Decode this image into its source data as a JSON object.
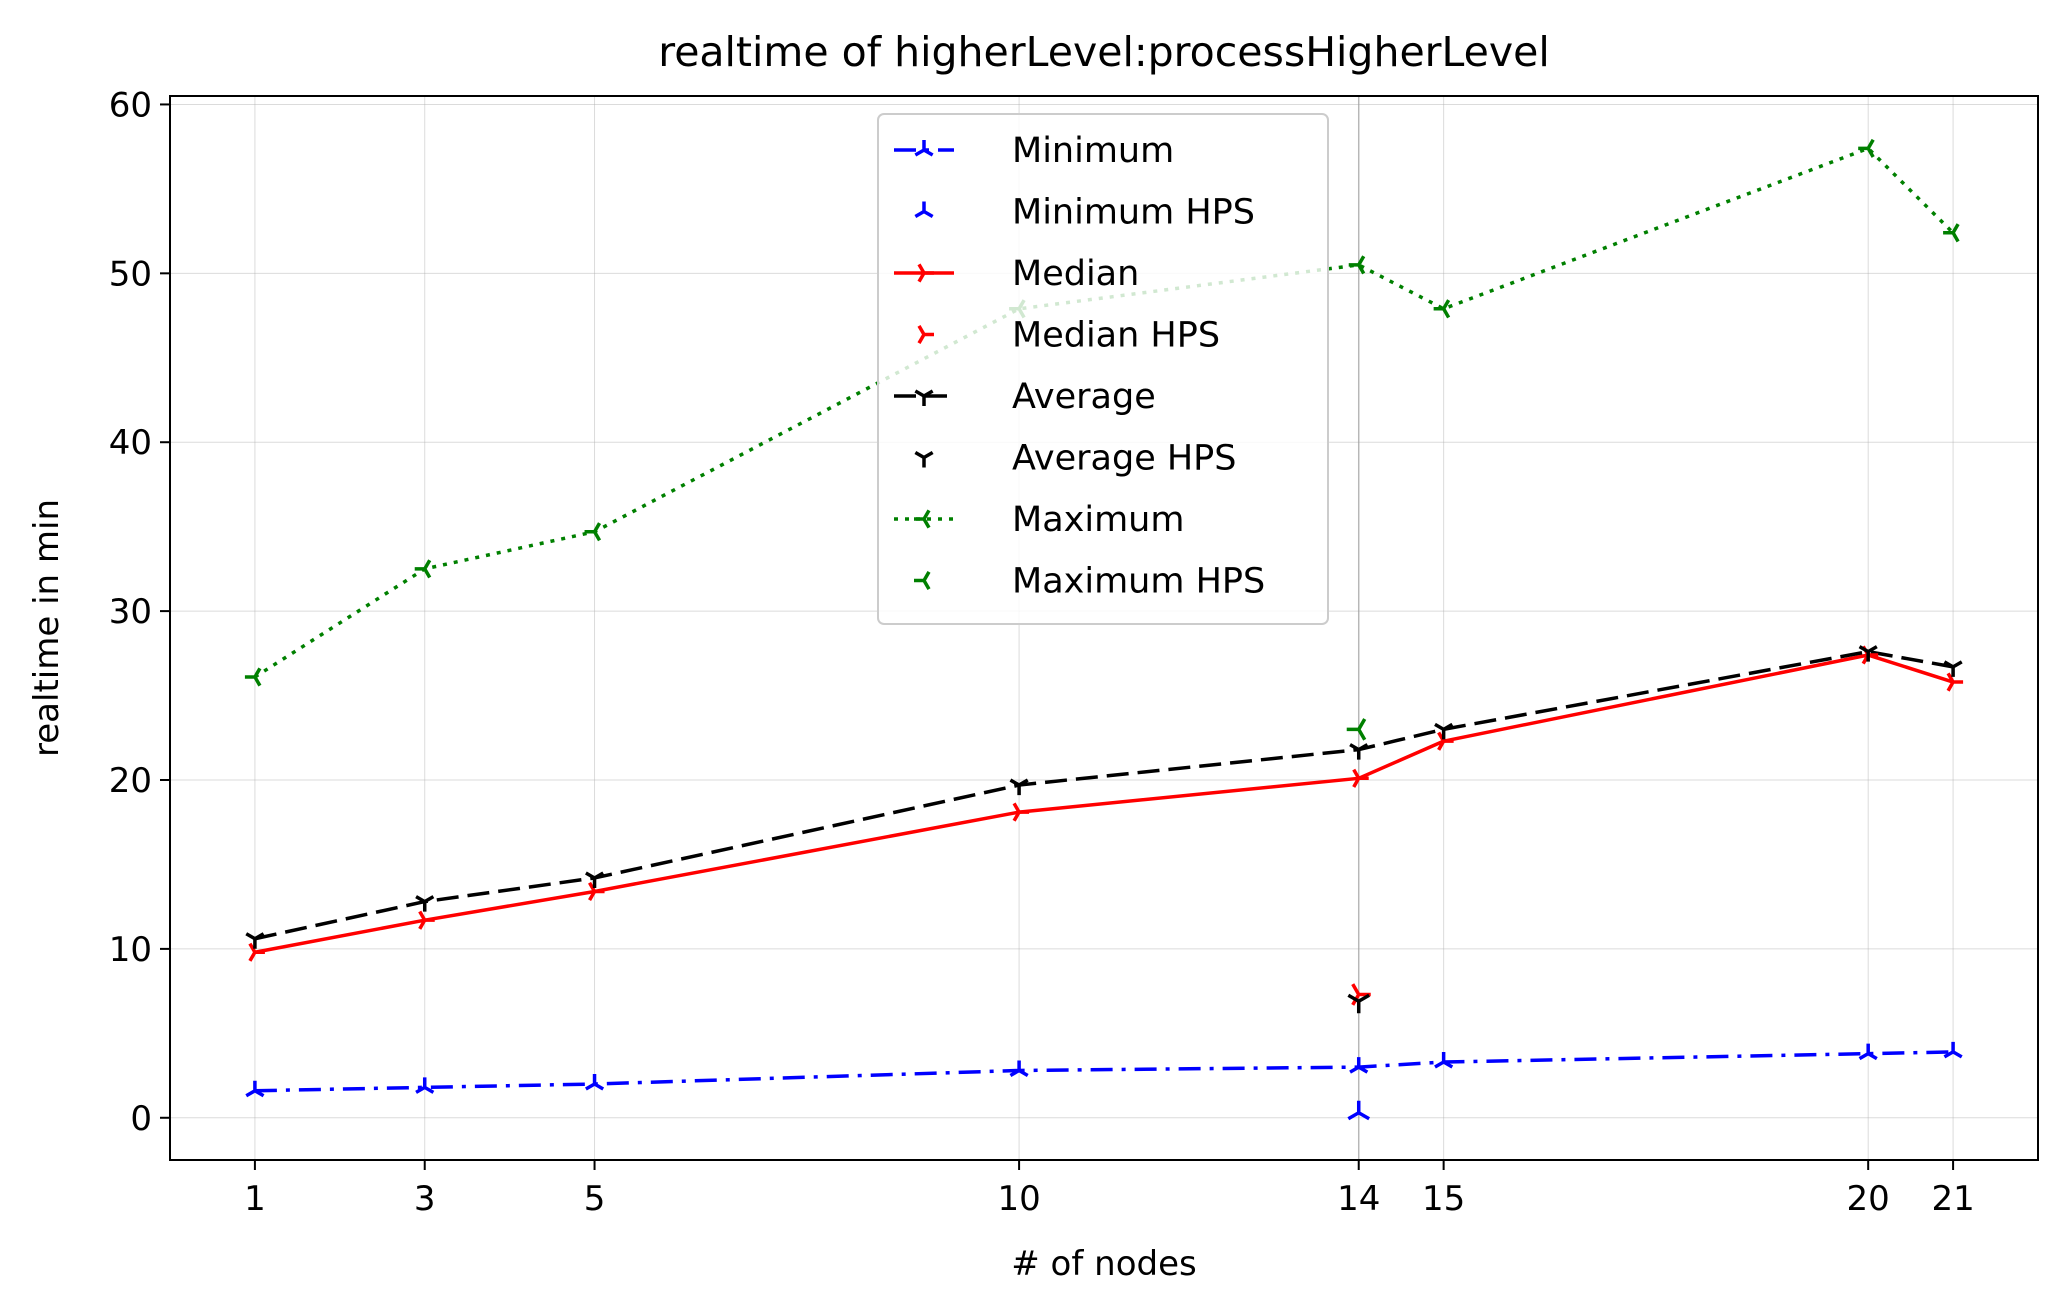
{
  "chart_data": {
    "type": "line",
    "title": "realtime of higherLevel:processHigherLevel",
    "xlabel": "# of nodes",
    "ylabel": "realtime in min",
    "xlim": [
      0,
      22
    ],
    "ylim": [
      -2.5,
      60.5
    ],
    "x_ticks": [
      1,
      3,
      5,
      10,
      14,
      15,
      20,
      21
    ],
    "y_ticks": [
      0,
      10,
      20,
      30,
      40,
      50,
      60
    ],
    "grid": true,
    "legend_position": "upper center",
    "x": [
      1,
      3,
      5,
      10,
      14,
      15,
      20,
      21
    ],
    "series": [
      {
        "name": "Minimum",
        "style": "dashdot",
        "marker": "tri_up",
        "color": "#0000ff",
        "values": [
          1.6,
          1.8,
          2.0,
          2.8,
          3.0,
          3.3,
          3.8,
          3.9
        ]
      },
      {
        "name": "Median",
        "style": "solid",
        "marker": "tri_right",
        "color": "#ff0000",
        "values": [
          9.8,
          11.7,
          13.4,
          18.1,
          20.1,
          22.3,
          27.4,
          25.8
        ]
      },
      {
        "name": "Average",
        "style": "dashed",
        "marker": "tri_down",
        "color": "#000000",
        "values": [
          10.6,
          12.8,
          14.2,
          19.7,
          21.8,
          23.0,
          27.6,
          26.7
        ]
      },
      {
        "name": "Maximum",
        "style": "dotted",
        "marker": "tri_left",
        "color": "#008000",
        "values": [
          26.1,
          32.5,
          34.7,
          47.9,
          50.5,
          47.9,
          57.4,
          52.4
        ]
      }
    ],
    "hps_points": [
      {
        "name": "Minimum HPS",
        "x": 14,
        "y": 0.3,
        "marker": "tri_up",
        "color": "#0000ff"
      },
      {
        "name": "Median HPS",
        "x": 14,
        "y": 7.3,
        "marker": "tri_right",
        "color": "#ff0000"
      },
      {
        "name": "Average HPS",
        "x": 14,
        "y": 6.9,
        "marker": "tri_down",
        "color": "#000000"
      },
      {
        "name": "Maximum HPS",
        "x": 14,
        "y": 23.0,
        "marker": "tri_left",
        "color": "#008000"
      }
    ],
    "hps_vline_x": 14,
    "legend": [
      {
        "label": "Minimum",
        "style": "dashdot",
        "marker": "tri_up",
        "color": "#0000ff"
      },
      {
        "label": "Minimum HPS",
        "style": "none",
        "marker": "tri_up",
        "color": "#0000ff"
      },
      {
        "label": "Median",
        "style": "solid",
        "marker": "tri_right",
        "color": "#ff0000"
      },
      {
        "label": "Median HPS",
        "style": "none",
        "marker": "tri_right",
        "color": "#ff0000"
      },
      {
        "label": "Average",
        "style": "dashed",
        "marker": "tri_down",
        "color": "#000000"
      },
      {
        "label": "Average HPS",
        "style": "none",
        "marker": "tri_down",
        "color": "#000000"
      },
      {
        "label": "Maximum",
        "style": "dotted",
        "marker": "tri_left",
        "color": "#008000"
      },
      {
        "label": "Maximum HPS",
        "style": "none",
        "marker": "tri_left",
        "color": "#008000"
      }
    ]
  }
}
